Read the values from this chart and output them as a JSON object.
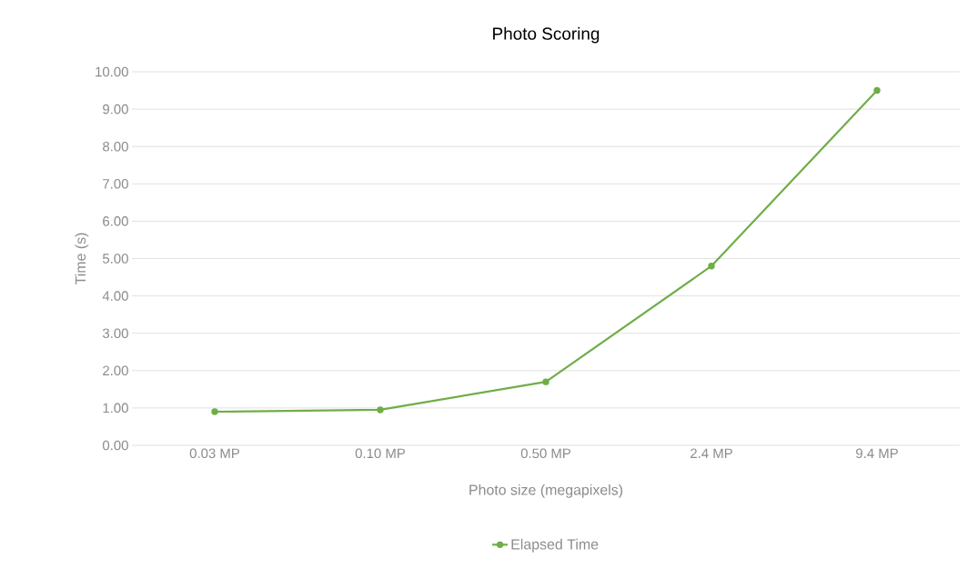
{
  "chart_data": {
    "type": "line",
    "title": "Photo Scoring",
    "xlabel": "Photo size (megapixels)",
    "ylabel": "Time (s)",
    "categories": [
      "0.03 MP",
      "0.10 MP",
      "0.50 MP",
      "2.4 MP",
      "9.4 MP"
    ],
    "series": [
      {
        "name": "Elapsed Time",
        "color": "#70ad47",
        "values": [
          0.9,
          0.95,
          1.7,
          4.8,
          9.5
        ]
      }
    ],
    "ylim": [
      0,
      10
    ],
    "yticks": [
      {
        "value": 0,
        "label": "0.00"
      },
      {
        "value": 1,
        "label": "1.00"
      },
      {
        "value": 2,
        "label": "2.00"
      },
      {
        "value": 3,
        "label": "3.00"
      },
      {
        "value": 4,
        "label": "4.00"
      },
      {
        "value": 5,
        "label": "5.00"
      },
      {
        "value": 6,
        "label": "6.00"
      },
      {
        "value": 7,
        "label": "7.00"
      },
      {
        "value": 8,
        "label": "8.00"
      },
      {
        "value": 9,
        "label": "9.00"
      },
      {
        "value": 10,
        "label": "10.00"
      }
    ],
    "grid": "y",
    "legend": "bottom",
    "marker": "circle",
    "line_style": "solid"
  }
}
